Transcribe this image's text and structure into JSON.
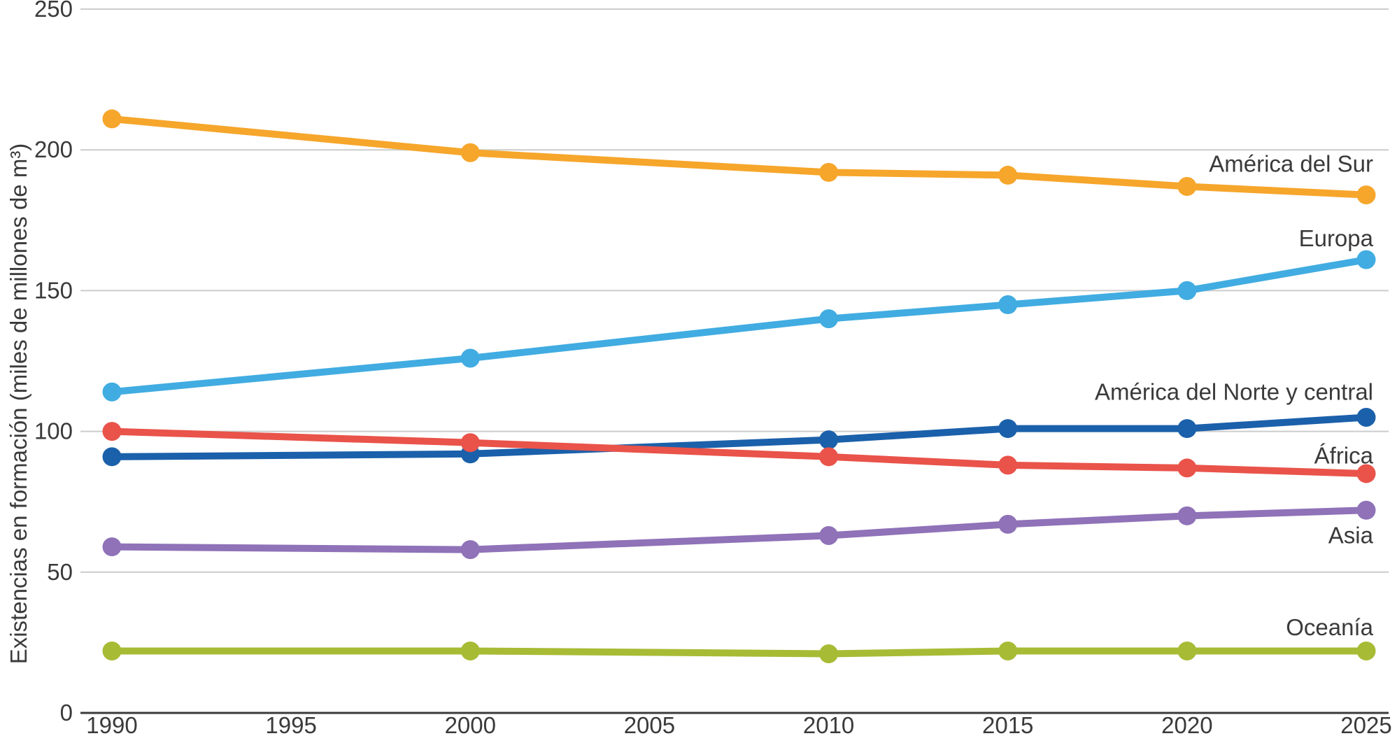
{
  "chart_data": {
    "type": "line",
    "title": "",
    "xlabel": "",
    "ylabel": "Existencias en formación (miles de millones de m³)",
    "ylim": [
      0,
      250
    ],
    "yticks": [
      0,
      50,
      100,
      150,
      200,
      250
    ],
    "xlim": [
      1990,
      2025
    ],
    "xticks": [
      1990,
      1995,
      2000,
      2005,
      2010,
      2015,
      2020,
      2025
    ],
    "x": [
      1990,
      2000,
      2010,
      2015,
      2020,
      2025
    ],
    "grid": "horizontal",
    "legend_position": "right-end-labels",
    "series": [
      {
        "name": "América del Sur",
        "color": "#F6A62B",
        "values": [
          211,
          199,
          192,
          191,
          187,
          184
        ],
        "label_value": 195
      },
      {
        "name": "Europa",
        "color": "#41ACE1",
        "values": [
          114,
          126,
          140,
          145,
          150,
          161
        ],
        "label_value": 168.5
      },
      {
        "name": "América del Norte y central",
        "color": "#1B60AA",
        "values": [
          91,
          92,
          97,
          101,
          101,
          105
        ],
        "label_value": 114
      },
      {
        "name": "África",
        "color": "#E9534A",
        "values": [
          100,
          96,
          91,
          88,
          87,
          85
        ],
        "label_value": 91.3
      },
      {
        "name": "Asia",
        "color": "#8F72B8",
        "values": [
          59,
          58,
          63,
          67,
          70,
          72
        ],
        "label_value": 63
      },
      {
        "name": "Oceanía",
        "color": "#A8BB35",
        "values": [
          22,
          22,
          21,
          22,
          22,
          22
        ],
        "label_value": 30.3
      }
    ],
    "colors": {
      "grid": "#cccccc",
      "axis": "#3a3a3a",
      "text": "#3a3a3a"
    }
  }
}
